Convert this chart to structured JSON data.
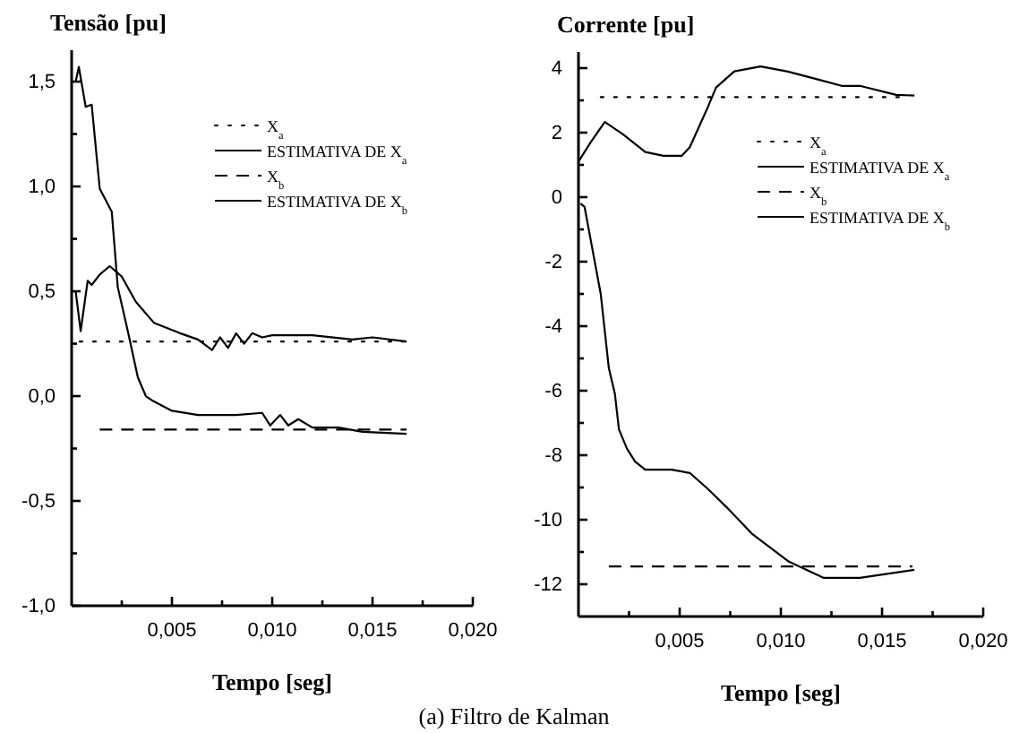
{
  "chart_data": [
    {
      "type": "line",
      "ylabel": "Tensão [pu]",
      "xlabel": "Tempo [seg]",
      "annotations": [
        "(a) Filtro de Kalman"
      ],
      "legend": "top right",
      "grid": false,
      "xlim": [
        0,
        0.02
      ],
      "ylim": [
        -1,
        1.65
      ],
      "xticks": [
        {
          "value": 0.0025,
          "label": null
        },
        {
          "value": 0.005,
          "label": "0,005"
        },
        {
          "value": 0.0075,
          "label": null
        },
        {
          "value": 0.01,
          "label": "0,010"
        },
        {
          "value": 0.0125,
          "label": null
        },
        {
          "value": 0.015,
          "label": "0,015"
        },
        {
          "value": 0.0175,
          "label": null
        },
        {
          "value": 0.02,
          "label": "0,020"
        }
      ],
      "yticks": [
        {
          "value": -1,
          "label": "-1,0"
        },
        {
          "value": -0.75,
          "label": null
        },
        {
          "value": -0.5,
          "label": "-0,5"
        },
        {
          "value": -0.25,
          "label": null
        },
        {
          "value": 0,
          "label": "0,0"
        },
        {
          "value": 0.25,
          "label": null
        },
        {
          "value": 0.5,
          "label": "0,5"
        },
        {
          "value": 0.75,
          "label": null
        },
        {
          "value": 1,
          "label": "1,0"
        },
        {
          "value": 1.25,
          "label": null
        },
        {
          "value": 1.5,
          "label": "1,5"
        }
      ],
      "series": [
        {
          "name": "X$_{a}$",
          "color": "#000000",
          "line_style": "dotted",
          "x": [
            0.0004,
            0.0167
          ],
          "values": [
            0.26,
            0.26
          ]
        },
        {
          "name": "ESTIMATIVA DE X$_{a}$",
          "color": "#000000",
          "line_style": "solid",
          "x": [
            0.0002,
            0.00045,
            0.0008,
            0.001,
            0.0014,
            0.0019,
            0.0025,
            0.0032,
            0.0041,
            0.0054,
            0.0063,
            0.007,
            0.0074,
            0.0078,
            0.0082,
            0.0086,
            0.009,
            0.0095,
            0.01,
            0.012,
            0.014,
            0.015,
            0.0167
          ],
          "values": [
            0.5,
            0.31,
            0.55,
            0.53,
            0.58,
            0.62,
            0.57,
            0.45,
            0.35,
            0.3,
            0.27,
            0.22,
            0.28,
            0.23,
            0.3,
            0.25,
            0.3,
            0.28,
            0.29,
            0.29,
            0.27,
            0.28,
            0.26
          ]
        },
        {
          "name": "X$_{b}$",
          "color": "#000000",
          "line_style": "dashed",
          "x": [
            0.0014,
            0.0167
          ],
          "values": [
            -0.16,
            -0.16
          ]
        },
        {
          "name": "ESTIMATIVA DE X$_{b}$",
          "color": "#000000",
          "line_style": "solid",
          "x": [
            0.0002,
            0.00036,
            0.0007,
            0.001,
            0.0014,
            0.002,
            0.0023,
            0.0028,
            0.0033,
            0.0037,
            0.004,
            0.005,
            0.0063,
            0.0082,
            0.0095,
            0.0099,
            0.0104,
            0.0108,
            0.0113,
            0.012,
            0.0133,
            0.0145,
            0.0167
          ],
          "values": [
            1.5,
            1.57,
            1.38,
            1.39,
            0.99,
            0.88,
            0.52,
            0.31,
            0.09,
            0.0,
            -0.02,
            -0.07,
            -0.09,
            -0.09,
            -0.08,
            -0.14,
            -0.09,
            -0.14,
            -0.11,
            -0.15,
            -0.15,
            -0.17,
            -0.18
          ]
        }
      ]
    },
    {
      "type": "line",
      "ylabel": "Corrente [pu]",
      "xlabel": "Tempo [seg]",
      "legend": "right",
      "grid": false,
      "xlim": [
        0,
        0.02
      ],
      "ylim": [
        -13,
        4.5
      ],
      "xticks": [
        {
          "value": 0.0025,
          "label": null
        },
        {
          "value": 0.005,
          "label": "0,005"
        },
        {
          "value": 0.0075,
          "label": null
        },
        {
          "value": 0.01,
          "label": "0,010"
        },
        {
          "value": 0.0125,
          "label": null
        },
        {
          "value": 0.015,
          "label": "0,015"
        },
        {
          "value": 0.0175,
          "label": null
        },
        {
          "value": 0.02,
          "label": "0,020"
        }
      ],
      "yticks": [
        -12,
        {
          "value": -11,
          "label": null
        },
        -10,
        {
          "value": -9,
          "label": null
        },
        -8,
        {
          "value": -7,
          "label": null
        },
        -6,
        {
          "value": -5,
          "label": null
        },
        -4,
        {
          "value": -3,
          "label": null
        },
        -2,
        {
          "value": -1,
          "label": null
        },
        0,
        {
          "value": 1,
          "label": null
        },
        2,
        {
          "value": 3,
          "label": null
        },
        4
      ],
      "series": [
        {
          "name": "X$_{a}$",
          "color": "#000000",
          "line_style": "dotted",
          "x": [
            0.0011,
            0.016
          ],
          "values": [
            3.1,
            3.1
          ]
        },
        {
          "name": "ESTIMATIVA DE X$_{a}$",
          "color": "#000000",
          "line_style": "solid",
          "x": [
            0,
            0.0006,
            0.0013,
            0.0022,
            0.0033,
            0.0042,
            0.0051,
            0.0055,
            0.0064,
            0.0068,
            0.0077,
            0.009,
            0.0103,
            0.0117,
            0.013,
            0.0139,
            0.0157,
            0.0166
          ],
          "values": [
            1.1,
            1.7,
            2.33,
            1.95,
            1.4,
            1.28,
            1.28,
            1.55,
            2.8,
            3.4,
            3.9,
            4.05,
            3.9,
            3.67,
            3.45,
            3.45,
            3.17,
            3.15
          ]
        },
        {
          "name": "X$_{b}$",
          "color": "#000000",
          "line_style": "dashed",
          "x": [
            0.0015,
            0.0165
          ],
          "values": [
            -11.45,
            -11.45
          ]
        },
        {
          "name": "ESTIMATIVA DE X$_{b}$",
          "color": "#000000",
          "line_style": "solid",
          "x": [
            0.0001,
            0.0003,
            0.0011,
            0.0015,
            0.0018,
            0.002,
            0.0024,
            0.0028,
            0.0033,
            0.0046,
            0.0055,
            0.0064,
            0.0073,
            0.0086,
            0.0104,
            0.0121,
            0.0139,
            0.0166
          ],
          "values": [
            -0.2,
            -0.3,
            -3,
            -5.3,
            -6.1,
            -7.2,
            -7.8,
            -8.2,
            -8.45,
            -8.45,
            -8.55,
            -9.05,
            -9.6,
            -10.45,
            -11.3,
            -11.8,
            -11.8,
            -11.55
          ]
        }
      ]
    }
  ]
}
